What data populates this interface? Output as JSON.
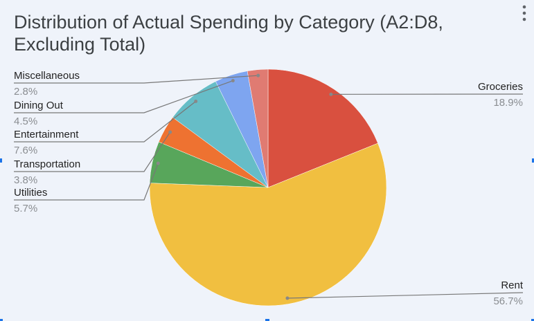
{
  "chart_data": {
    "type": "pie",
    "title": "Distribution of Actual Spending by Category (A2:D8, Excluding Total)",
    "categories": [
      "Groceries",
      "Rent",
      "Utilities",
      "Transportation",
      "Entertainment",
      "Dining Out",
      "Miscellaneous"
    ],
    "values": [
      18.9,
      56.7,
      5.7,
      3.8,
      7.6,
      4.5,
      2.8
    ],
    "value_labels": [
      "18.9%",
      "56.7%",
      "5.7%",
      "3.8%",
      "7.6%",
      "4.5%",
      "2.8%"
    ],
    "colors": [
      "#d9503f",
      "#f1bf40",
      "#58a65b",
      "#ee7231",
      "#66bdc7",
      "#7ea5f0",
      "#e07b72"
    ]
  }
}
